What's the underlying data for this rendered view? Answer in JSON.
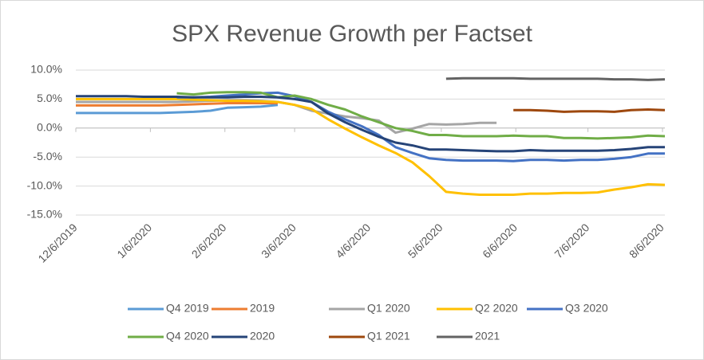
{
  "chart_data": {
    "type": "line",
    "title": "SPX Revenue Growth per Factset",
    "x": [
      "12/6/2019",
      "12/13/2019",
      "12/20/2019",
      "12/27/2019",
      "1/3/2020",
      "1/10/2020",
      "1/17/2020",
      "1/24/2020",
      "1/31/2020",
      "2/7/2020",
      "2/14/2020",
      "2/21/2020",
      "2/28/2020",
      "3/6/2020",
      "3/13/2020",
      "3/20/2020",
      "3/27/2020",
      "4/3/2020",
      "4/10/2020",
      "4/17/2020",
      "4/24/2020",
      "5/1/2020",
      "5/8/2020",
      "5/15/2020",
      "5/22/2020",
      "5/29/2020",
      "6/5/2020",
      "6/12/2020",
      "6/19/2020",
      "6/26/2020",
      "7/3/2020",
      "7/10/2020",
      "7/17/2020",
      "7/24/2020",
      "7/31/2020",
      "8/7/2020"
    ],
    "xlim": [
      "12/6/2019",
      "8/7/2020"
    ],
    "xticks": [
      "12/6/2019",
      "1/6/2020",
      "2/6/2020",
      "3/6/2020",
      "4/6/2020",
      "5/6/2020",
      "6/6/2020",
      "7/6/2020",
      "8/6/2020"
    ],
    "ylim": [
      -15,
      10
    ],
    "yticks": [
      {
        "value": -15,
        "label": "-15.0%"
      },
      {
        "value": -10,
        "label": "-10.0%"
      },
      {
        "value": -5,
        "label": "-5.0%"
      },
      {
        "value": 0,
        "label": "0.0%"
      },
      {
        "value": 5,
        "label": "5.0%"
      },
      {
        "value": 10,
        "label": "10.0%"
      }
    ],
    "grid": true,
    "legend": "bottom",
    "series": [
      {
        "name": "Q4 2019",
        "color": "#5b9bd5",
        "values": [
          2.6,
          2.6,
          2.6,
          2.6,
          2.6,
          2.6,
          2.7,
          2.8,
          3.0,
          3.5,
          3.6,
          3.7,
          4.0,
          null,
          null,
          null,
          null,
          null,
          null,
          null,
          null,
          null,
          null,
          null,
          null,
          null,
          null,
          null,
          null,
          null,
          null,
          null,
          null,
          null,
          null,
          null
        ]
      },
      {
        "name": "2019",
        "color": "#ed7d31",
        "values": [
          3.9,
          3.9,
          3.9,
          3.9,
          3.9,
          3.9,
          4.0,
          4.1,
          4.2,
          4.3,
          4.3,
          4.3,
          4.3,
          null,
          null,
          null,
          null,
          null,
          null,
          null,
          null,
          null,
          null,
          null,
          null,
          null,
          null,
          null,
          null,
          null,
          null,
          null,
          null,
          null,
          null,
          null
        ]
      },
      {
        "name": "Q1 2020",
        "color": "#a5a5a5",
        "values": [
          4.5,
          4.5,
          4.5,
          4.5,
          4.5,
          4.5,
          4.5,
          4.6,
          4.7,
          4.8,
          4.8,
          4.7,
          4.5,
          4.0,
          3.0,
          2.5,
          2.0,
          1.7,
          1.3,
          -0.8,
          -0.1,
          0.7,
          0.6,
          0.7,
          0.9,
          0.9,
          null,
          null,
          null,
          null,
          null,
          null,
          null,
          null,
          null,
          null
        ]
      },
      {
        "name": "Q2 2020",
        "color": "#ffc000",
        "values": [
          5.0,
          5.0,
          5.0,
          5.0,
          5.0,
          5.0,
          5.0,
          4.9,
          4.8,
          4.7,
          4.7,
          4.6,
          4.5,
          4.0,
          3.3,
          1.5,
          -0.1,
          -1.6,
          -3.0,
          -4.3,
          -5.9,
          -8.3,
          -11.0,
          -11.3,
          -11.5,
          -11.5,
          -11.5,
          -11.3,
          -11.3,
          -11.2,
          -11.2,
          -11.1,
          -10.6,
          -10.2,
          -9.7,
          -9.8
        ]
      },
      {
        "name": "Q3 2020",
        "color": "#4472c4",
        "values": [
          null,
          null,
          null,
          null,
          null,
          null,
          5.3,
          5.3,
          5.4,
          5.6,
          5.8,
          6.0,
          6.1,
          5.5,
          4.5,
          2.8,
          1.5,
          0.3,
          -1.2,
          -3.3,
          -4.3,
          -5.2,
          -5.5,
          -5.6,
          -5.6,
          -5.6,
          -5.7,
          -5.5,
          -5.5,
          -5.6,
          -5.5,
          -5.5,
          -5.3,
          -5.0,
          -4.4,
          -4.4
        ]
      },
      {
        "name": "Q4 2020",
        "color": "#70ad47",
        "values": [
          null,
          null,
          null,
          null,
          null,
          null,
          6.0,
          5.8,
          6.1,
          6.2,
          6.2,
          6.1,
          5.3,
          5.6,
          5.0,
          4.0,
          3.2,
          2.0,
          1.0,
          0.0,
          -0.5,
          -1.2,
          -1.2,
          -1.4,
          -1.4,
          -1.4,
          -1.3,
          -1.4,
          -1.4,
          -1.7,
          -1.7,
          -1.8,
          -1.7,
          -1.6,
          -1.3,
          -1.4
        ]
      },
      {
        "name": "2020",
        "color": "#264478",
        "values": [
          5.5,
          5.5,
          5.5,
          5.5,
          5.4,
          5.4,
          5.4,
          5.3,
          5.3,
          5.3,
          5.4,
          5.4,
          5.3,
          5.0,
          4.5,
          2.5,
          1.0,
          -0.3,
          -1.5,
          -2.5,
          -3.0,
          -3.7,
          -3.7,
          -3.8,
          -3.9,
          -4.0,
          -4.0,
          -3.8,
          -3.9,
          -3.9,
          -3.9,
          -3.9,
          -3.8,
          -3.6,
          -3.3,
          -3.3
        ]
      },
      {
        "name": "Q1 2021",
        "color": "#9e480e",
        "values": [
          null,
          null,
          null,
          null,
          null,
          null,
          null,
          null,
          null,
          null,
          null,
          null,
          null,
          null,
          null,
          null,
          null,
          null,
          null,
          null,
          null,
          null,
          null,
          null,
          null,
          null,
          3.1,
          3.1,
          3.0,
          2.8,
          2.9,
          2.9,
          2.8,
          3.1,
          3.2,
          3.1
        ]
      },
      {
        "name": "2021",
        "color": "#636363",
        "values": [
          null,
          null,
          null,
          null,
          null,
          null,
          null,
          null,
          null,
          null,
          null,
          null,
          null,
          null,
          null,
          null,
          null,
          null,
          null,
          null,
          null,
          null,
          8.5,
          8.6,
          8.6,
          8.6,
          8.6,
          8.5,
          8.5,
          8.5,
          8.5,
          8.5,
          8.4,
          8.4,
          8.3,
          8.4
        ]
      }
    ]
  }
}
